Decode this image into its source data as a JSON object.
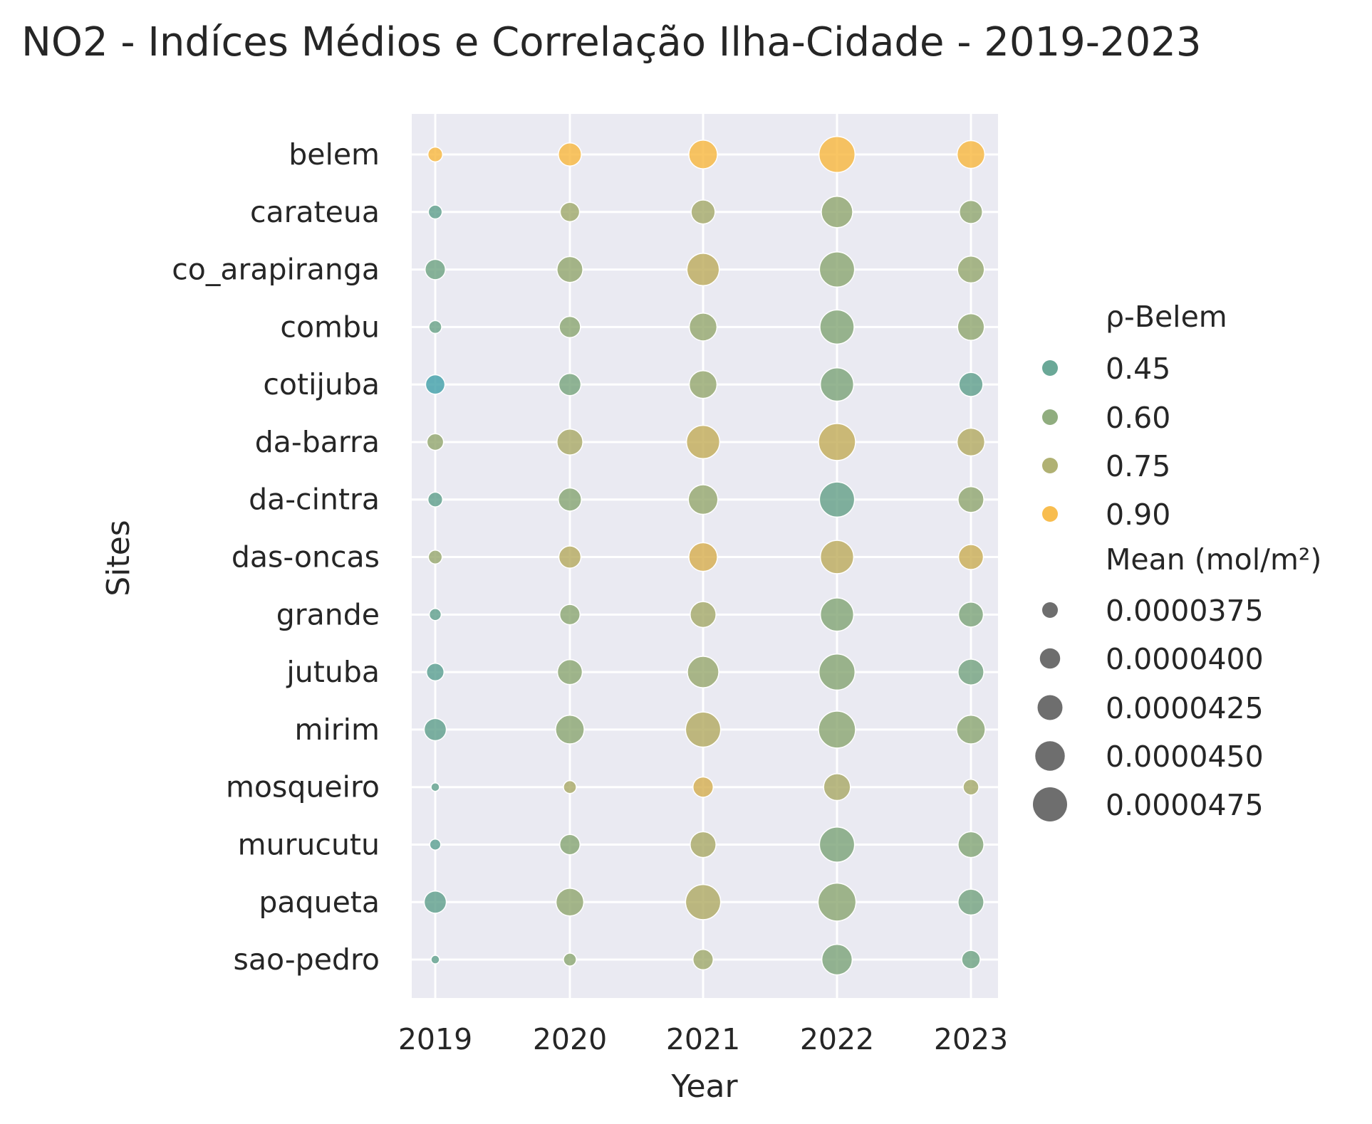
{
  "chart_data": {
    "type": "scatter",
    "title": "NO2 - Indíces Médios e Correlação Ilha-Cidade - 2019-2023",
    "xlabel": "Year",
    "ylabel": "Sites",
    "x_categories": [
      "2019",
      "2020",
      "2021",
      "2022",
      "2023"
    ],
    "y_categories": [
      "belem",
      "carateua",
      "co_arapiranga",
      "combu",
      "cotijuba",
      "da-barra",
      "da-cintra",
      "das-oncas",
      "grande",
      "jutuba",
      "mirim",
      "mosqueiro",
      "murucutu",
      "paqueta",
      "sao-pedro"
    ],
    "grid": true,
    "background_color": "#eaeaf2",
    "color_scale": [
      "#3a9fad",
      "#5a9e8c",
      "#84a471",
      "#a7a864",
      "#d6ad4c",
      "#f7b63c"
    ],
    "legend": {
      "placement": "right",
      "color_title": "ρ-Belem",
      "color_entries": [
        {
          "label": "0.45",
          "value": 0.45,
          "color": "#5a9e8c"
        },
        {
          "label": "0.60",
          "value": 0.6,
          "color": "#84a471"
        },
        {
          "label": "0.75",
          "value": 0.75,
          "color": "#a7a864"
        },
        {
          "label": "0.90",
          "value": 0.9,
          "color": "#f7b63c"
        }
      ],
      "size_title": "Mean (mol/m²)",
      "size_entries": [
        {
          "label": "0.0000375",
          "value": 3.75e-05
        },
        {
          "label": "0.0000400",
          "value": 4e-05
        },
        {
          "label": "0.0000425",
          "value": 4.25e-05
        },
        {
          "label": "0.0000450",
          "value": 4.5e-05
        },
        {
          "label": "0.0000475",
          "value": 4.75e-05
        }
      ],
      "size_marker_color": "#6e6e6e"
    },
    "series": [
      {
        "site": "belem",
        "rho": [
          1.0,
          1.0,
          1.0,
          1.0,
          1.0
        ],
        "mean": [
          3.7e-05,
          4.15e-05,
          4.45e-05,
          4.85e-05,
          4.4e-05
        ]
      },
      {
        "site": "carateua",
        "rho": [
          0.45,
          0.68,
          0.7,
          0.62,
          0.62
        ],
        "mean": [
          3.65e-05,
          3.95e-05,
          4.2e-05,
          4.6e-05,
          4.15e-05
        ]
      },
      {
        "site": "co_arapiranga",
        "rho": [
          0.5,
          0.63,
          0.78,
          0.6,
          0.64
        ],
        "mean": [
          4e-05,
          4.3e-05,
          4.65e-05,
          4.8e-05,
          4.35e-05
        ]
      },
      {
        "site": "combu",
        "rho": [
          0.48,
          0.6,
          0.64,
          0.57,
          0.62
        ],
        "mean": [
          3.6e-05,
          4.05e-05,
          4.4e-05,
          4.75e-05,
          4.35e-05
        ]
      },
      {
        "site": "cotijuba",
        "rho": [
          0.32,
          0.53,
          0.64,
          0.55,
          0.45
        ],
        "mean": [
          3.95e-05,
          4.1e-05,
          4.4e-05,
          4.7e-05,
          4.2e-05
        ]
      },
      {
        "site": "da-barra",
        "rho": [
          0.63,
          0.72,
          0.8,
          0.8,
          0.75
        ],
        "mean": [
          3.8e-05,
          4.3e-05,
          4.7e-05,
          4.9e-05,
          4.4e-05
        ]
      },
      {
        "site": "da-cintra",
        "rho": [
          0.45,
          0.58,
          0.64,
          0.47,
          0.62
        ],
        "mean": [
          3.7e-05,
          4.15e-05,
          4.5e-05,
          4.8e-05,
          4.3e-05
        ]
      },
      {
        "site": "das-oncas",
        "rho": [
          0.65,
          0.76,
          0.86,
          0.78,
          0.82
        ],
        "mean": [
          3.65e-05,
          4.1e-05,
          4.45e-05,
          4.7e-05,
          4.25e-05
        ]
      },
      {
        "site": "grande",
        "rho": [
          0.45,
          0.6,
          0.7,
          0.57,
          0.55
        ],
        "mean": [
          3.55e-05,
          4e-05,
          4.3e-05,
          4.7e-05,
          4.25e-05
        ]
      },
      {
        "site": "jutuba",
        "rho": [
          0.43,
          0.6,
          0.65,
          0.58,
          0.52
        ],
        "mean": [
          3.85e-05,
          4.25e-05,
          4.6e-05,
          4.85e-05,
          4.3e-05
        ]
      },
      {
        "site": "mirim",
        "rho": [
          0.45,
          0.6,
          0.75,
          0.6,
          0.6
        ],
        "mean": [
          4.1e-05,
          4.45e-05,
          4.8e-05,
          4.9e-05,
          4.45e-05
        ]
      },
      {
        "site": "mosqueiro",
        "rho": [
          0.45,
          0.72,
          0.85,
          0.72,
          0.7
        ],
        "mean": [
          3.35e-05,
          3.6e-05,
          4e-05,
          4.35e-05,
          3.75e-05
        ]
      },
      {
        "site": "murucutu",
        "rho": [
          0.43,
          0.58,
          0.72,
          0.55,
          0.57
        ],
        "mean": [
          3.5e-05,
          4e-05,
          4.3e-05,
          4.8e-05,
          4.3e-05
        ]
      },
      {
        "site": "paqueta",
        "rho": [
          0.45,
          0.62,
          0.74,
          0.6,
          0.52
        ],
        "mean": [
          4.1e-05,
          4.4e-05,
          4.8e-05,
          4.95e-05,
          4.3e-05
        ]
      },
      {
        "site": "sao-pedro",
        "rho": [
          0.45,
          0.6,
          0.68,
          0.55,
          0.5
        ],
        "mean": [
          3.3e-05,
          3.6e-05,
          4e-05,
          4.55e-05,
          3.9e-05
        ]
      }
    ]
  }
}
